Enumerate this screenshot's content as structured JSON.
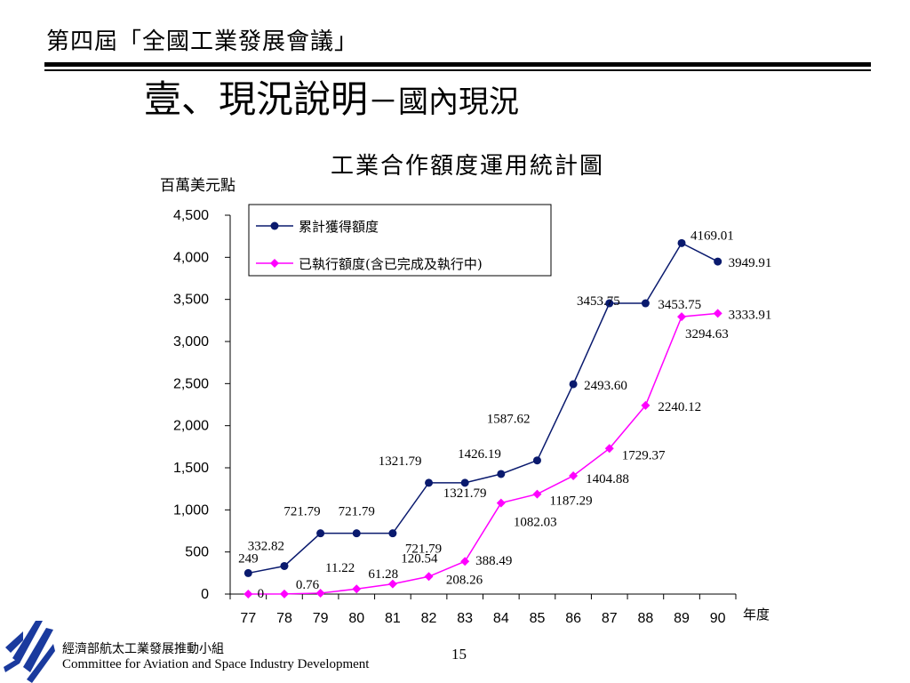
{
  "slide": {
    "conference_title": "第四屆「全國工業發展會議」",
    "heading_main": "壹、現況說明",
    "heading_dash": "－",
    "heading_sub": "國內現況",
    "page_number": "15"
  },
  "footer": {
    "org_cn": "經濟部航太工業發展推動小組",
    "org_en": "Committee for Aviation and Space Industry Development"
  },
  "colors": {
    "series1": "#0a1a6e",
    "series2": "#ff00ff"
  },
  "chart_data": {
    "type": "line",
    "title": "工業合作額度運用統計圖",
    "ylabel": "百萬美元點",
    "xlabel": "年度",
    "categories": [
      "77",
      "78",
      "79",
      "80",
      "81",
      "82",
      "83",
      "84",
      "85",
      "86",
      "87",
      "88",
      "89",
      "90"
    ],
    "ylim": [
      0,
      4500
    ],
    "yticks": [
      0,
      500,
      1000,
      1500,
      2000,
      2500,
      3000,
      3500,
      4000,
      4500
    ],
    "ytick_labels": [
      "0",
      "500",
      "1,000",
      "1,500",
      "2,000",
      "2,500",
      "3,000",
      "3,500",
      "4,000",
      "4,500"
    ],
    "grid": false,
    "legend_position": "top-left",
    "series": [
      {
        "name": "累計獲得額度",
        "values": [
          249,
          332.82,
          721.79,
          721.79,
          721.79,
          1321.79,
          1321.79,
          1426.19,
          1587.62,
          2493.6,
          3453.75,
          3453.75,
          4169.01,
          3949.91
        ],
        "labels": [
          "249",
          "332.82",
          "721.79",
          "721.79",
          "721.79",
          "1321.79",
          "1321.79",
          "1426.19",
          "1587.62",
          "2493.60",
          "3453.75",
          "3453.75",
          "4169.01",
          "3949.91"
        ]
      },
      {
        "name": "已執行額度(含已完成及執行中)",
        "values": [
          0,
          0.76,
          11.22,
          61.28,
          120.54,
          208.26,
          388.49,
          1082.03,
          1187.29,
          1404.88,
          1729.37,
          2240.12,
          3294.63,
          3333.91
        ],
        "labels": [
          "0",
          "0.76",
          "11.22",
          "61.28",
          "120.54",
          "208.26",
          "388.49",
          "1082.03",
          "1187.29",
          "1404.88",
          "1729.37",
          "2240.12",
          "3294.63",
          "3333.91"
        ]
      }
    ]
  }
}
